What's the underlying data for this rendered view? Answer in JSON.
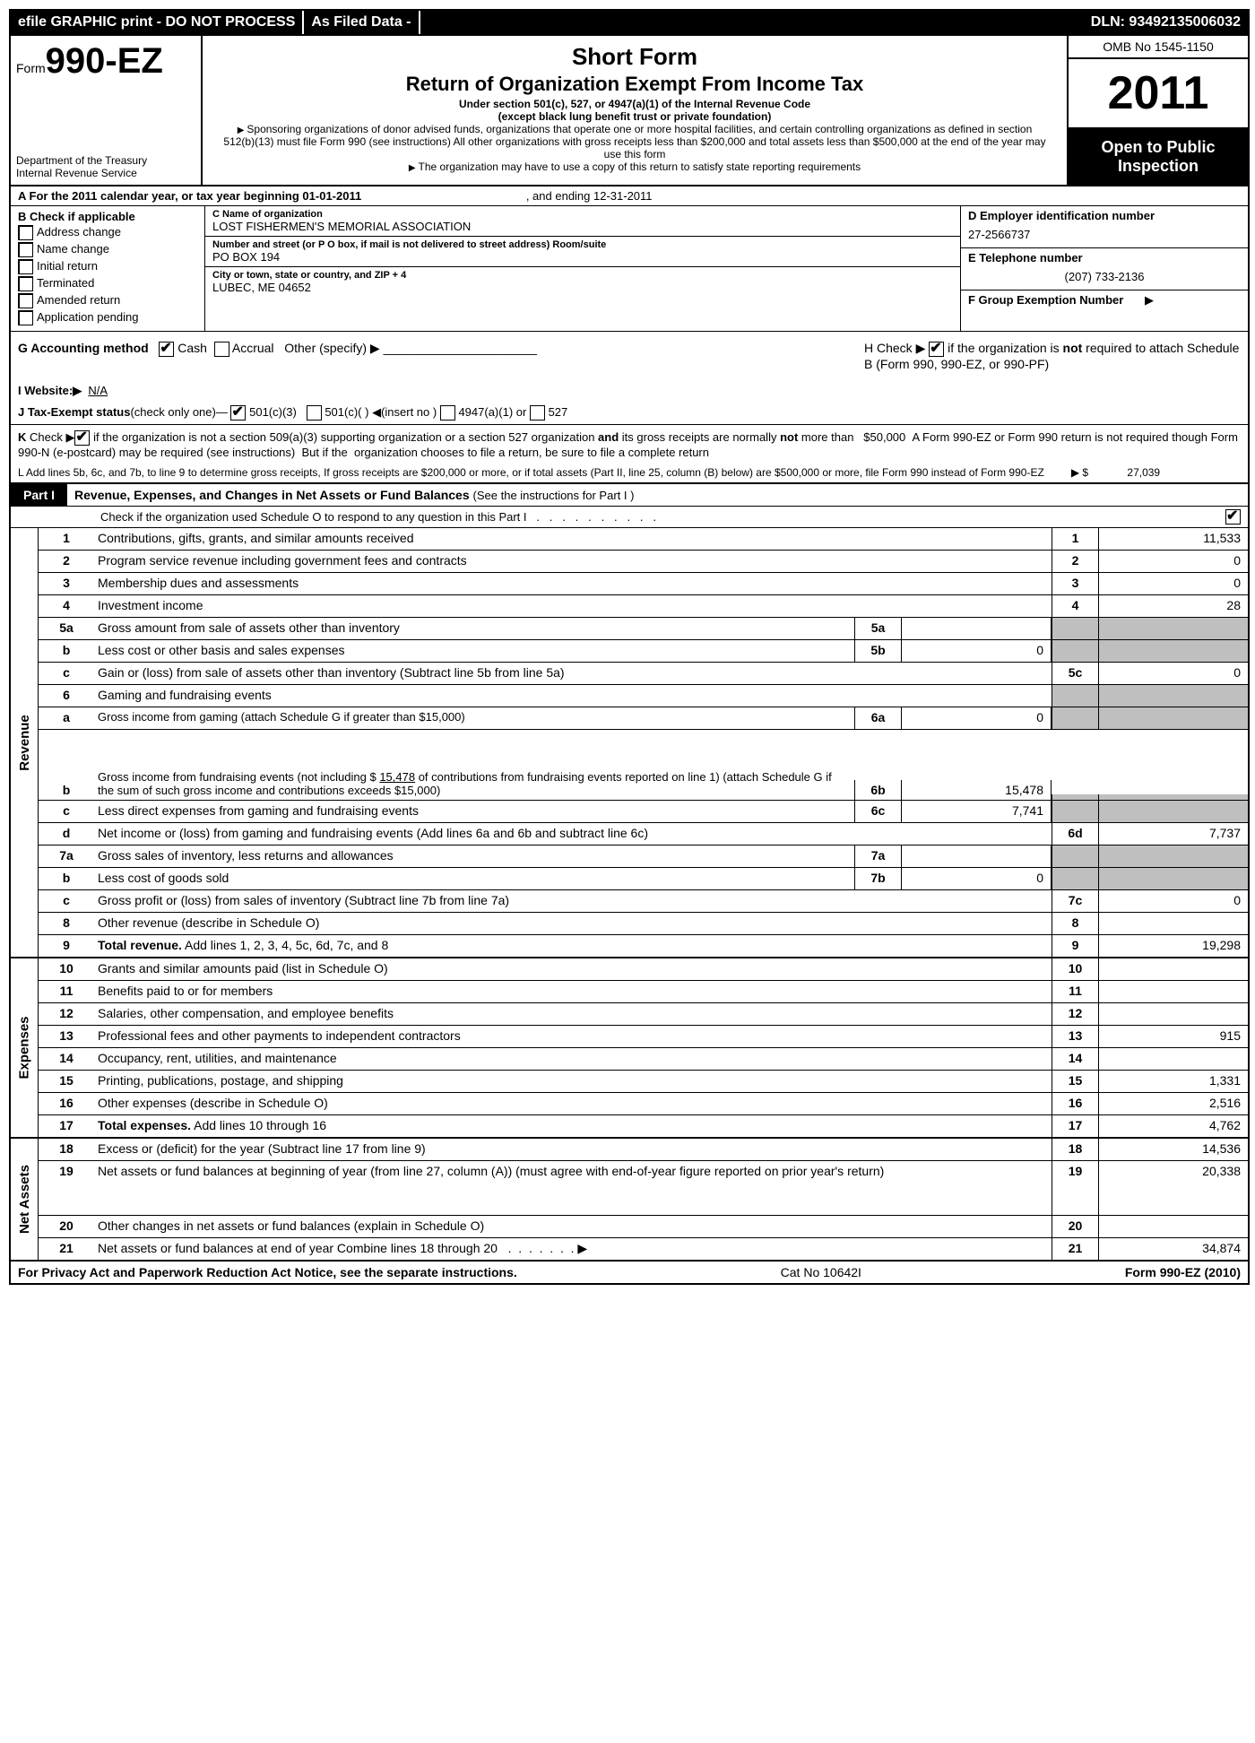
{
  "topbar": {
    "efile": "efile GRAPHIC print - DO NOT PROCESS",
    "asfiled": "As Filed Data -",
    "dln": "DLN: 93492135006032"
  },
  "header": {
    "form_prefix": "Form",
    "form_number": "990-EZ",
    "dept1": "Department of the Treasury",
    "dept2": "Internal Revenue Service",
    "title1": "Short Form",
    "title2": "Return of Organization Exempt From Income Tax",
    "sub1": "Under section 501(c), 527, or 4947(a)(1) of the Internal Revenue Code",
    "sub2": "(except black lung benefit trust or private foundation)",
    "bullet1": "Sponsoring organizations of donor advised funds, organizations that operate one or more hospital facilities, and certain controlling organizations as defined in section 512(b)(13) must file Form 990 (see instructions) All other organizations with gross receipts less than $200,000 and total assets less than $500,000 at the end of the year may use this form",
    "bullet2": "The organization may have to use a copy of this return to satisfy state reporting requirements",
    "omb": "OMB No 1545-1150",
    "year": "2011",
    "open1": "Open to Public",
    "open2": "Inspection"
  },
  "sectionA": {
    "text_a": "A  For the 2011 calendar year, or tax year beginning 01-01-2011",
    "text_b": ", and ending 12-31-2011"
  },
  "colB": {
    "header": "B  Check if applicable",
    "items": [
      "Address change",
      "Name change",
      "Initial return",
      "Terminated",
      "Amended return",
      "Application pending"
    ]
  },
  "colC": {
    "label_name": "C Name of organization",
    "name": "LOST FISHERMEN'S MEMORIAL ASSOCIATION",
    "label_addr": "Number and street (or P  O  box, if mail is not delivered to street address) Room/suite",
    "addr": "PO BOX 194",
    "label_city": "City or town, state or country, and ZIP + 4",
    "city": "LUBEC, ME  04652"
  },
  "colDEF": {
    "d_label": "D Employer identification number",
    "d_val": "27-2566737",
    "e_label": "E Telephone number",
    "e_val": "(207) 733-2136",
    "f_label": "F Group Exemption Number",
    "f_arrow": "▶"
  },
  "lineG": {
    "label": "G Accounting method",
    "cash": "Cash",
    "accrual": "Accrual",
    "other": "Other (specify)",
    "h_text1": "H   Check ▶",
    "h_text2": "if the organization is not required to attach Schedule B (Form 990, 990-EZ, or 990-PF)"
  },
  "lineI": {
    "label": "I Website:▶",
    "val": "N/A"
  },
  "lineJ": {
    "label": "J Tax-Exempt status",
    "sub": "(check only one)—",
    "c3": "501(c)(3)",
    "c": "501(c)(  )",
    "insert": "(insert no )",
    "a4947": "4947(a)(1) or",
    "s527": "527"
  },
  "lineK": {
    "text": "K Check ▶  if the organization is not a section 509(a)(3) supporting organization or a section 527 organization and its gross receipts are normally not more than   $50,000  A Form 990-EZ or Form 990 return is not required though Form 990-N (e-postcard) may be required (see instructions)  But if the  organization chooses to file a return, be sure to file a complete return"
  },
  "lineL": {
    "text": "L Add lines 5b, 6c, and 7b, to line 9 to determine gross receipts, If gross receipts are $200,000 or more, or if total assets (Part II, line 25, column (B) below) are $500,000 or more,  file Form 990 instead of Form 990-EZ",
    "arrow": "▶ $",
    "val": "27,039"
  },
  "part1": {
    "label": "Part I",
    "title": "Revenue, Expenses, and Changes in Net Assets or Fund Balances",
    "sub": "(See the instructions for Part I )",
    "check_line": "Check if the organization used Schedule O to respond to any question in this Part I"
  },
  "revenue": {
    "side": "Revenue",
    "lines": [
      {
        "n": "1",
        "d": "Contributions, gifts, grants, and similar amounts received",
        "rn": "1",
        "rv": "11,533"
      },
      {
        "n": "2",
        "d": "Program service revenue including government fees and contracts",
        "rn": "2",
        "rv": "0"
      },
      {
        "n": "3",
        "d": "Membership dues and assessments",
        "rn": "3",
        "rv": "0"
      },
      {
        "n": "4",
        "d": "Investment income",
        "rn": "4",
        "rv": "28"
      },
      {
        "n": "5a",
        "d": "Gross amount from sale of assets other than inventory",
        "mn": "5a",
        "mv": ""
      },
      {
        "n": "b",
        "d": "Less  cost or other basis and sales expenses",
        "mn": "5b",
        "mv": "0"
      },
      {
        "n": "c",
        "d": "Gain or (loss) from sale of assets other than inventory (Subtract line 5b from line 5a)",
        "rn": "5c",
        "rv": "0"
      },
      {
        "n": "6",
        "d": "Gaming and fundraising events"
      },
      {
        "n": "a",
        "d": "Gross income from gaming (attach Schedule G if greater than $15,000)",
        "mn": "6a",
        "mv": "0",
        "small": true
      },
      {
        "n": "b",
        "d": "Gross income from fundraising events (not including $ 15,478 of contributions from fundraising events reported on line 1) (attach Schedule G if the sum of such gross income and contributions exceeds $15,000)",
        "mn": "6b",
        "mv": "15,478",
        "small": true,
        "tall": true
      },
      {
        "n": "c",
        "d": "Less  direct expenses from gaming and fundraising events",
        "mn": "6c",
        "mv": "7,741"
      },
      {
        "n": "d",
        "d": "Net income or (loss) from gaming and fundraising events (Add lines 6a and 6b and subtract line 6c)",
        "rn": "6d",
        "rv": "7,737"
      },
      {
        "n": "7a",
        "d": "Gross sales of inventory, less returns and allowances",
        "mn": "7a",
        "mv": ""
      },
      {
        "n": "b",
        "d": "Less  cost of goods sold",
        "mn": "7b",
        "mv": "0"
      },
      {
        "n": "c",
        "d": "Gross profit or (loss) from sales of inventory (Subtract line 7b from line 7a)",
        "rn": "7c",
        "rv": "0"
      },
      {
        "n": "8",
        "d": "Other revenue (describe in Schedule O)",
        "rn": "8",
        "rv": ""
      },
      {
        "n": "9",
        "d": "Total revenue. Add lines 1, 2, 3, 4, 5c, 6d, 7c, and 8",
        "rn": "9",
        "rv": "19,298",
        "bold": true
      }
    ]
  },
  "expenses": {
    "side": "Expenses",
    "lines": [
      {
        "n": "10",
        "d": "Grants and similar amounts paid (list in Schedule O)",
        "rn": "10",
        "rv": ""
      },
      {
        "n": "11",
        "d": "Benefits paid to or for members",
        "rn": "11",
        "rv": ""
      },
      {
        "n": "12",
        "d": "Salaries, other compensation, and employee benefits",
        "rn": "12",
        "rv": ""
      },
      {
        "n": "13",
        "d": "Professional fees and other payments to independent contractors",
        "rn": "13",
        "rv": "915"
      },
      {
        "n": "14",
        "d": "Occupancy, rent, utilities, and maintenance",
        "rn": "14",
        "rv": ""
      },
      {
        "n": "15",
        "d": "Printing, publications, postage, and shipping",
        "rn": "15",
        "rv": "1,331"
      },
      {
        "n": "16",
        "d": "Other expenses (describe in Schedule O)",
        "rn": "16",
        "rv": "2,516"
      },
      {
        "n": "17",
        "d": "Total expenses. Add lines 10 through 16",
        "rn": "17",
        "rv": "4,762",
        "bold": true
      }
    ]
  },
  "netassets": {
    "side": "Net Assets",
    "lines": [
      {
        "n": "18",
        "d": "Excess or (deficit) for the year (Subtract line 17 from line 9)",
        "rn": "18",
        "rv": "14,536"
      },
      {
        "n": "19",
        "d": "Net assets or fund balances at beginning of year (from line 27, column (A)) (must agree with end-of-year figure reported on prior year's return)",
        "rn": "19",
        "rv": "20,338",
        "tall": true
      },
      {
        "n": "20",
        "d": "Other changes in net assets or fund balances (explain in Schedule O)",
        "rn": "20",
        "rv": ""
      },
      {
        "n": "21",
        "d": "Net assets or fund balances at end of year  Combine lines 18 through 20",
        "rn": "21",
        "rv": "34,874",
        "arrow": true
      }
    ]
  },
  "footer": {
    "left": "For Privacy Act and Paperwork Reduction Act Notice, see the separate instructions.",
    "mid": "Cat  No  10642I",
    "right": "Form 990-EZ (2010)"
  }
}
